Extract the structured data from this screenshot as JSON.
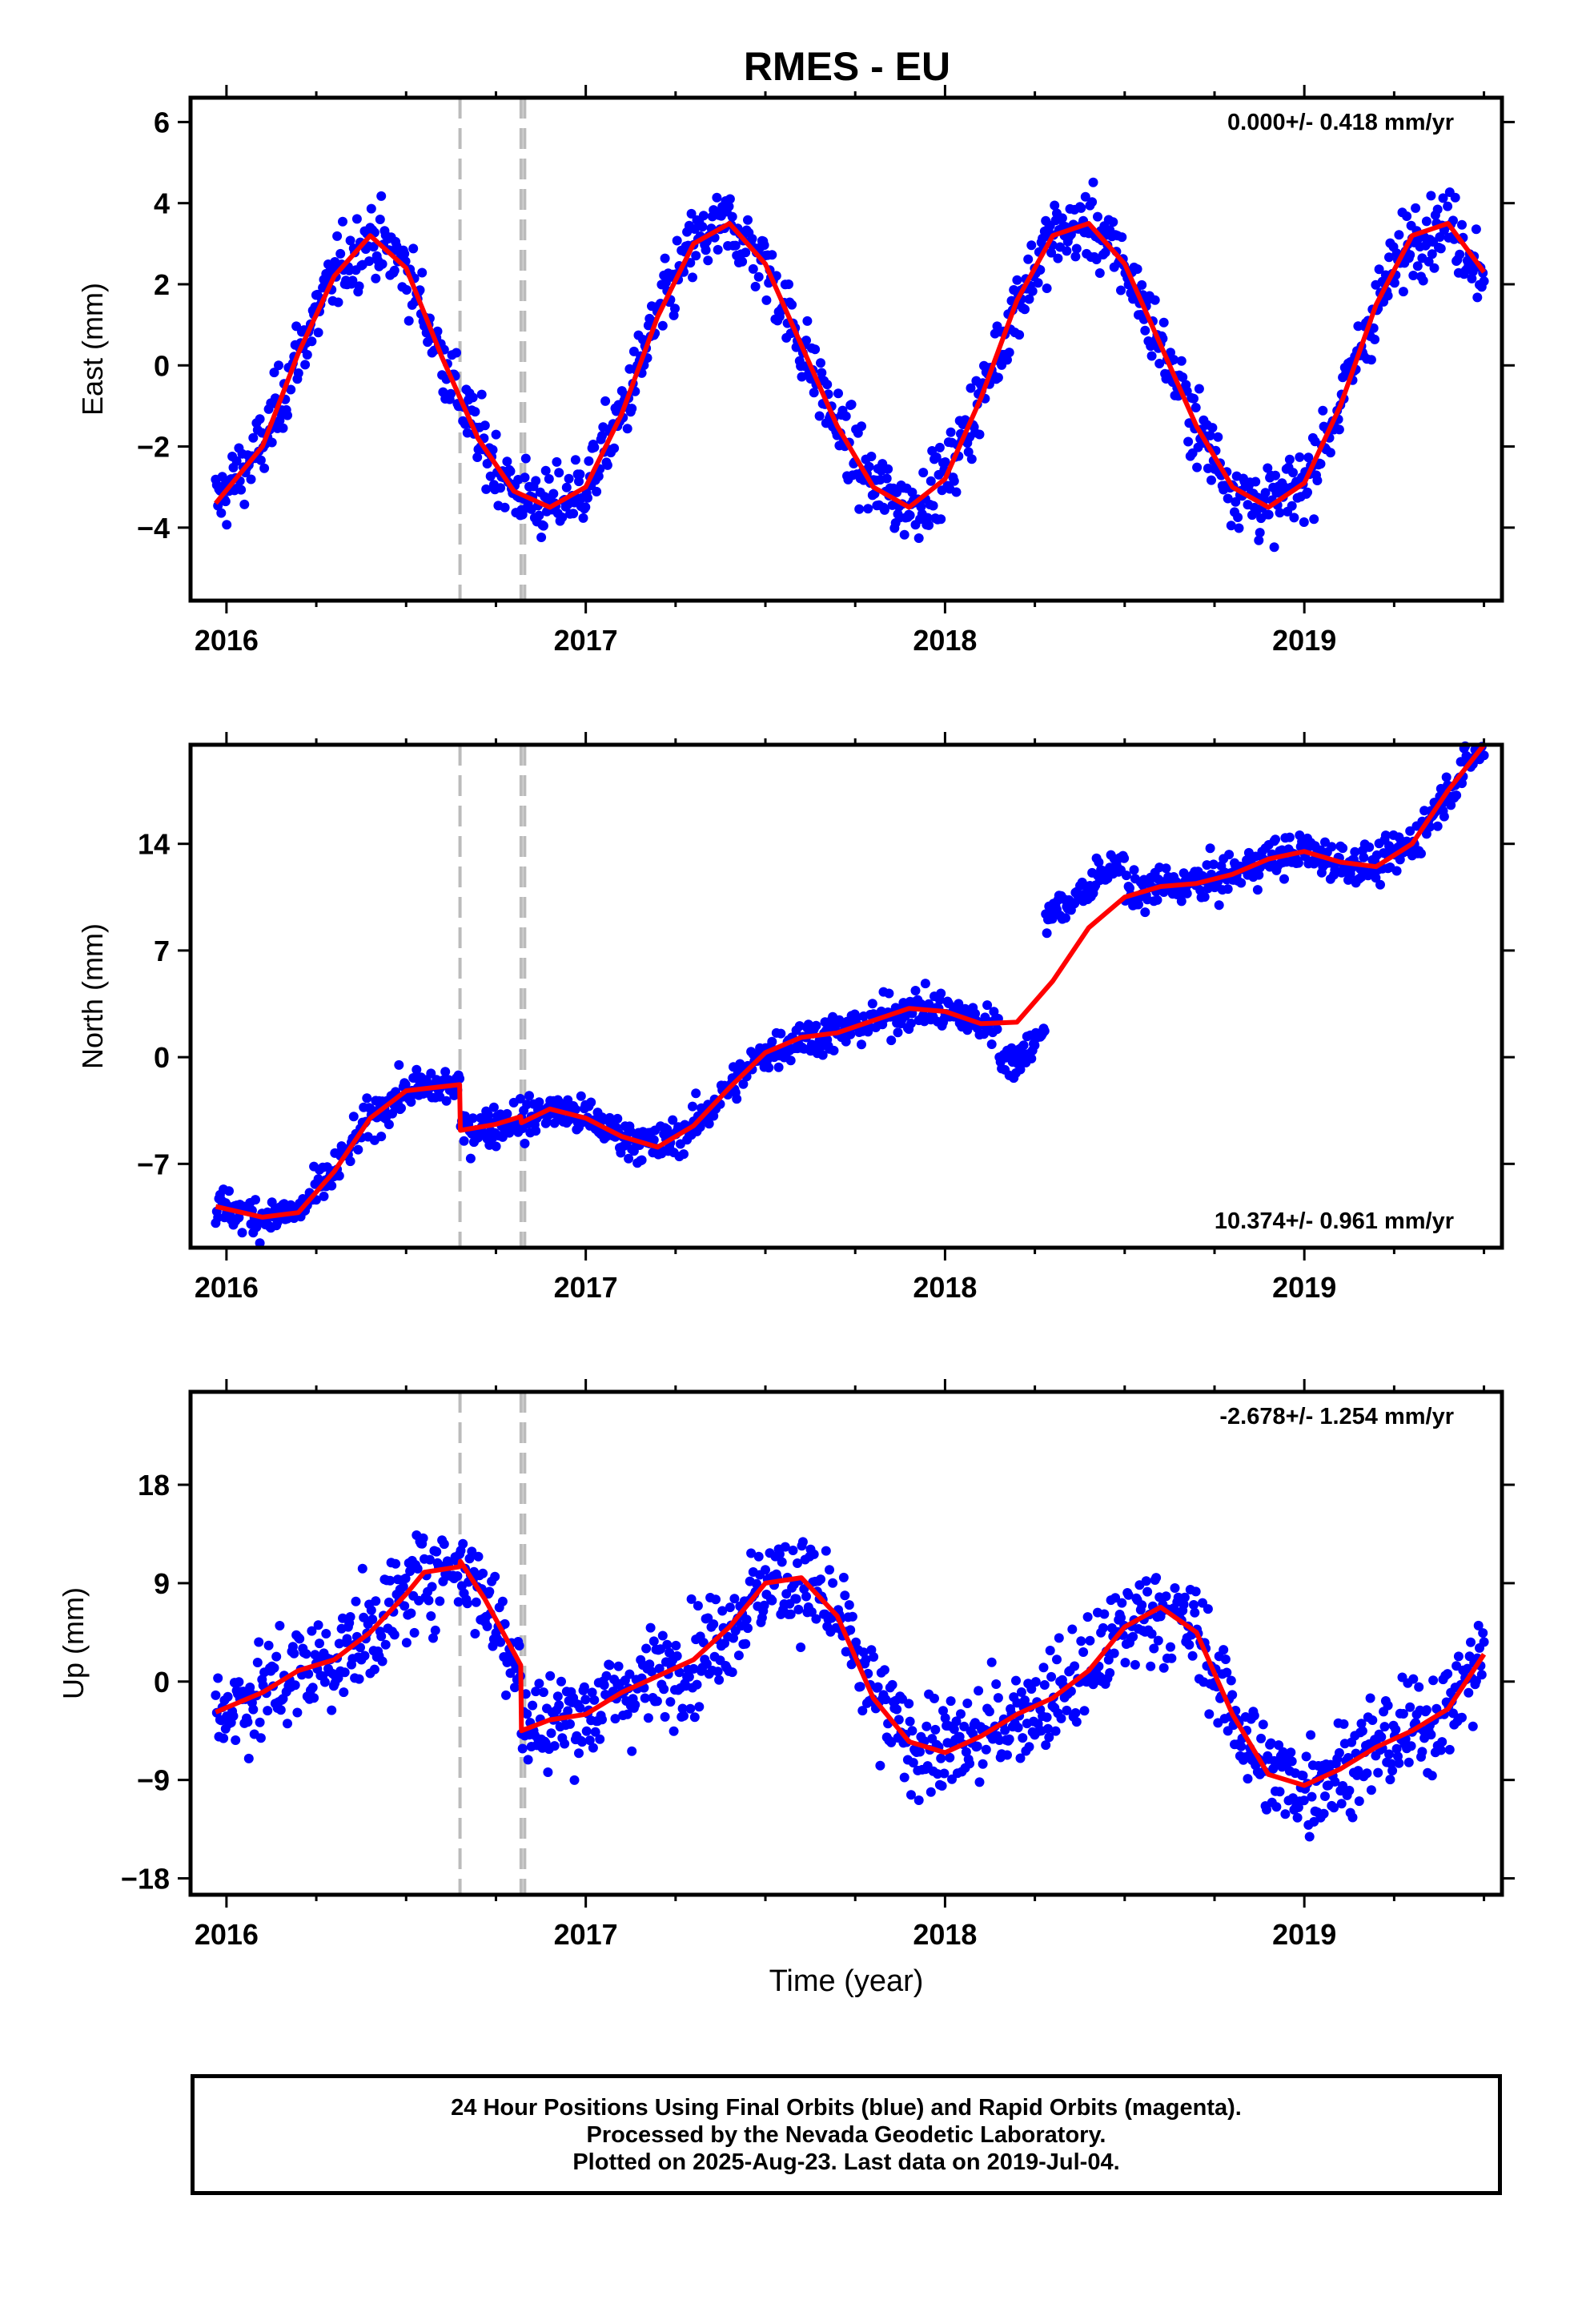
{
  "title": "RMES - EU",
  "footer": {
    "line1": "24 Hour Positions Using Final Orbits (blue) and Rapid Orbits (magenta).",
    "line2": "Processed by the Nevada Geodetic Laboratory.",
    "line3": "Plotted on 2025-Aug-23. Last data on 2019-Jul-04."
  },
  "colors": {
    "points": "#0000ff",
    "model": "#ff0000",
    "events": "#bbbbbb",
    "frame": "#000000"
  },
  "chart_data": [
    {
      "type": "scatter",
      "ylabel": "East (mm)",
      "xlabel": "",
      "rate_text": "0.000+/- 0.418 mm/yr",
      "rate_position": "top-right",
      "xlim": [
        2015.9,
        2019.55
      ],
      "ylim": [
        -5.8,
        6.6
      ],
      "xticks": [
        2016,
        2017,
        2018,
        2019
      ],
      "yticks": [
        -4,
        -2,
        0,
        2,
        4,
        6
      ],
      "event_lines": [
        2016.65,
        2016.82,
        2016.83
      ],
      "model": {
        "x": [
          2015.97,
          2016.1,
          2016.2,
          2016.3,
          2016.4,
          2016.5,
          2016.6,
          2016.7,
          2016.8,
          2016.9,
          2017.0,
          2017.1,
          2017.2,
          2017.3,
          2017.4,
          2017.5,
          2017.6,
          2017.7,
          2017.8,
          2017.9,
          2018.0,
          2018.1,
          2018.2,
          2018.3,
          2018.4,
          2018.5,
          2018.6,
          2018.7,
          2018.8,
          2018.9,
          2019.0,
          2019.1,
          2019.2,
          2019.3,
          2019.4,
          2019.5
        ],
        "y": [
          -3.4,
          -2.0,
          0.3,
          2.2,
          3.2,
          2.4,
          0.2,
          -1.8,
          -3.1,
          -3.5,
          -3.0,
          -1.2,
          1.2,
          3.0,
          3.5,
          2.5,
          0.5,
          -1.5,
          -3.0,
          -3.5,
          -2.8,
          -0.8,
          1.6,
          3.2,
          3.5,
          2.5,
          0.5,
          -1.5,
          -3.0,
          -3.5,
          -2.9,
          -1.0,
          1.5,
          3.2,
          3.5,
          2.3
        ]
      },
      "point_count": 1150,
      "point_scatter": 0.75
    },
    {
      "type": "scatter",
      "ylabel": "North (mm)",
      "xlabel": "",
      "rate_text": "10.374+/- 0.961 mm/yr",
      "rate_position": "bottom-right",
      "xlim": [
        2015.9,
        2019.55
      ],
      "ylim": [
        -12.5,
        20.5
      ],
      "xticks": [
        2016,
        2017,
        2018,
        2019
      ],
      "yticks": [
        -7,
        0,
        7,
        14
      ],
      "event_lines": [
        2016.65,
        2016.82,
        2016.83
      ],
      "model": {
        "x": [
          2015.97,
          2016.1,
          2016.2,
          2016.3,
          2016.4,
          2016.5,
          2016.649,
          2016.651,
          2016.75,
          2016.819,
          2016.821,
          2016.9,
          2017.0,
          2017.1,
          2017.2,
          2017.3,
          2017.4,
          2017.5,
          2017.6,
          2017.7,
          2017.8,
          2017.9,
          2018.0,
          2018.1,
          2018.2,
          2018.3,
          2018.4,
          2018.5,
          2018.6,
          2018.7,
          2018.8,
          2018.9,
          2019.0,
          2019.1,
          2019.2,
          2019.3,
          2019.4,
          2019.5
        ],
        "y": [
          -9.8,
          -10.5,
          -10.2,
          -7.5,
          -4.0,
          -2.2,
          -1.8,
          -4.8,
          -4.4,
          -3.9,
          -4.3,
          -3.4,
          -4.0,
          -5.2,
          -5.9,
          -4.5,
          -2.0,
          0.3,
          1.3,
          1.6,
          2.4,
          3.2,
          3.0,
          2.2,
          2.3,
          5.0,
          8.5,
          10.5,
          11.2,
          11.4,
          12.0,
          13.0,
          13.5,
          12.8,
          12.5,
          14.0,
          17.5,
          20.5
        ]
      },
      "point_count": 1150,
      "point_scatter": 1.1
    },
    {
      "type": "scatter",
      "ylabel": "Up (mm)",
      "xlabel": "Time (year)",
      "rate_text": "-2.678+/- 1.254 mm/yr",
      "rate_position": "top-right",
      "xlim": [
        2015.9,
        2019.55
      ],
      "ylim": [
        -19.5,
        26.5
      ],
      "xticks": [
        2016,
        2017,
        2018,
        2019
      ],
      "yticks": [
        -18,
        -9,
        0,
        9,
        18
      ],
      "event_lines": [
        2016.65,
        2016.82,
        2016.83
      ],
      "model": {
        "x": [
          2015.97,
          2016.1,
          2016.2,
          2016.3,
          2016.4,
          2016.5,
          2016.55,
          2016.649,
          2016.651,
          2016.72,
          2016.819,
          2016.821,
          2016.9,
          2017.0,
          2017.1,
          2017.2,
          2017.3,
          2017.4,
          2017.5,
          2017.6,
          2017.7,
          2017.8,
          2017.9,
          2018.0,
          2018.1,
          2018.2,
          2018.3,
          2018.4,
          2018.5,
          2018.6,
          2018.7,
          2018.8,
          2018.9,
          2019.0,
          2019.1,
          2019.2,
          2019.3,
          2019.4,
          2019.5
        ],
        "y": [
          -2.8,
          -1.0,
          1.0,
          2.0,
          4.5,
          8.0,
          10.0,
          10.5,
          11.0,
          7.5,
          1.5,
          -4.5,
          -3.5,
          -3.0,
          -1.0,
          0.5,
          2.0,
          5.0,
          9.0,
          9.5,
          6.0,
          -1.5,
          -5.5,
          -6.5,
          -5.0,
          -3.0,
          -1.5,
          1.0,
          5.0,
          6.8,
          4.5,
          -3.0,
          -8.5,
          -9.5,
          -8.0,
          -6.0,
          -4.5,
          -2.5,
          2.5
        ]
      },
      "point_count": 1150,
      "point_scatter": 3.8
    }
  ]
}
